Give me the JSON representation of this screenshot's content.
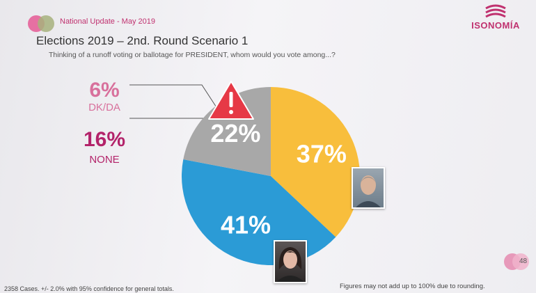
{
  "header": {
    "section": "National Update - May 2019"
  },
  "brand": {
    "name": "ISONOMÍA",
    "color": "#c0316f"
  },
  "slide": {
    "title": "Elections 2019 – 2nd. Round Scenario 1",
    "subtitle": "Thinking of a runoff voting or ballotage for PRESIDENT, whom would you vote among...?"
  },
  "callouts": {
    "dk": {
      "value": "6%",
      "label": "DK/DA"
    },
    "none": {
      "value": "16%",
      "label": "NONE"
    }
  },
  "warning_icon": "warning-triangle-icon",
  "chart_data": {
    "type": "pie",
    "title": "",
    "slices": [
      {
        "label": "",
        "value": 37,
        "display": "37%",
        "color": "#f8be3c"
      },
      {
        "label": "",
        "value": 41,
        "display": "41%",
        "color": "#2b9bd6"
      },
      {
        "label": "",
        "value": 22,
        "display": "22%",
        "color": "#a8a8a8"
      }
    ]
  },
  "page": {
    "number": "48"
  },
  "footer": {
    "left": "2358 Cases. +/- 2.0% with 95% confidence for general totals.",
    "right": "Figures may not add up to 100% due to rounding."
  }
}
